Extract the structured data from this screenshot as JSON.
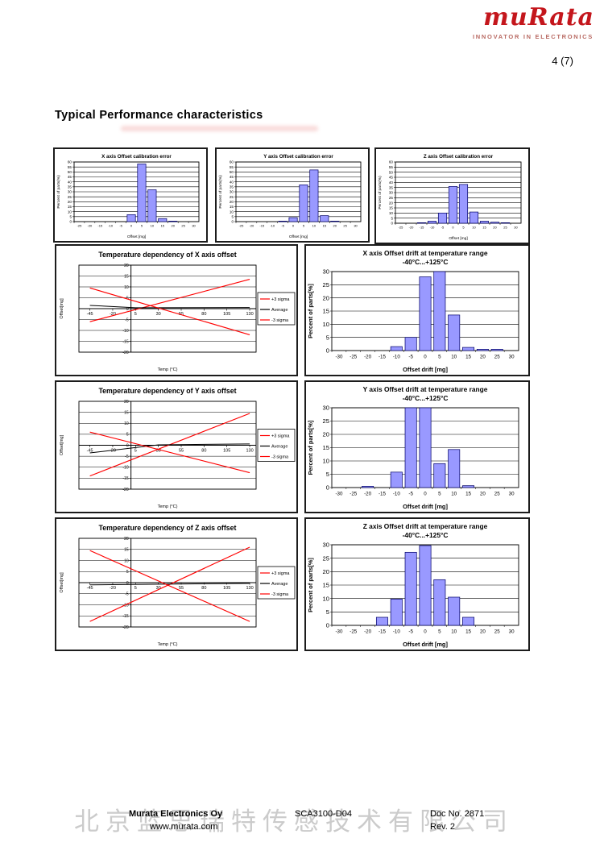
{
  "header": {
    "logo": "muRata",
    "tagline": "INNOVATOR IN ELECTRONICS",
    "page_number": "4 (7)"
  },
  "page_title": "Typical Performance characteristics",
  "footer": {
    "company": "Murata Electronics Oy",
    "website": "www.murata.com",
    "document": "SCA3100-D04",
    "doc_no": "Doc No. 2871",
    "revision": "Rev. 2",
    "watermark": "北京蓝思瑞特传感技术有限公司"
  },
  "colors": {
    "bar_fill": "#9999FF",
    "bar_stroke": "#000066",
    "sigma_line": "#FF0000",
    "average_line": "#000000",
    "logo_red": "#C4161C",
    "watermark_gray": "#CBCBCB"
  },
  "chart_data": [
    {
      "variant": "small-hist",
      "type": "bar",
      "title": [
        "X axis Offset calibration error"
      ],
      "xlabel": "Offset [mg]",
      "ylabel": "Percent of parts(%)",
      "ymax": 60,
      "ystep": 5,
      "ylim": [
        0,
        60
      ],
      "categories": [
        -25,
        -20,
        -15,
        -10,
        -5,
        0,
        5,
        10,
        15,
        20,
        25,
        30
      ],
      "values": [
        0,
        0,
        0,
        0,
        0,
        7,
        58,
        32,
        3,
        0.5,
        0,
        0
      ]
    },
    {
      "variant": "small-hist",
      "type": "bar",
      "title": [
        "Y axis Offset calibration error"
      ],
      "xlabel": "Offset [mg]",
      "ylabel": "Percent of parts(%)",
      "ymax": 60,
      "ystep": 5,
      "ylim": [
        0,
        60
      ],
      "categories": [
        -25,
        -20,
        -15,
        -10,
        -5,
        0,
        5,
        10,
        15,
        20,
        25,
        30
      ],
      "values": [
        0,
        0,
        0,
        0,
        0.5,
        4,
        37,
        52,
        6,
        0.5,
        0,
        0
      ]
    },
    {
      "variant": "small-hist",
      "type": "bar",
      "title": [
        "Z axis Offset calibration error"
      ],
      "xlabel": "Offset [mg]",
      "ylabel": "Percent of parts(%)",
      "ymax": 60,
      "ystep": 5,
      "ylim": [
        0,
        60
      ],
      "categories": [
        -25,
        -20,
        -15,
        -10,
        -5,
        0,
        5,
        10,
        15,
        20,
        25,
        30
      ],
      "values": [
        0,
        0,
        0.5,
        2,
        10,
        36,
        38,
        11,
        2,
        1,
        0.5,
        0
      ]
    },
    {
      "variant": "temp-line",
      "type": "line",
      "title": [
        "Temperature dependency of X axis offset"
      ],
      "xlabel": "Temp (°C)",
      "ylabel": "Offset[mg]",
      "xmin": -57,
      "xmax": 137,
      "ymin": -20,
      "ymax": 20,
      "ystep": 5,
      "xticks": [
        -45,
        -20,
        5,
        30,
        55,
        80,
        105,
        130
      ],
      "legend_position": "right",
      "series": [
        {
          "name": "+3 sigma",
          "color": "#FF0000",
          "points": [
            [
              -45,
              -6
            ],
            [
              130,
              13.5
            ]
          ]
        },
        {
          "name": "Average",
          "color": "#000000",
          "points": [
            [
              -45,
              1.5
            ],
            [
              5,
              0.4
            ],
            [
              130,
              0.5
            ]
          ]
        },
        {
          "name": "-3 sigma",
          "color": "#FF0000",
          "points": [
            [
              -45,
              9.5
            ],
            [
              130,
              -12
            ]
          ]
        }
      ]
    },
    {
      "variant": "drift-hist",
      "type": "bar",
      "title": [
        "X axis Offset drift at temperature range",
        "-40°C...+125°C"
      ],
      "xlabel": "Offset drift [mg]",
      "ylabel": "Percent of parts[%]",
      "ymax": 30,
      "ystep": 5,
      "ylim": [
        0,
        30
      ],
      "categories": [
        -30,
        -25,
        -20,
        -15,
        -10,
        -5,
        0,
        5,
        10,
        15,
        20,
        25,
        30
      ],
      "values": [
        0,
        0,
        0,
        0,
        1.5,
        5,
        28,
        30.5,
        13.5,
        1.2,
        0.5,
        0.5,
        0
      ]
    },
    {
      "variant": "temp-line",
      "type": "line",
      "title": [
        "Temperature dependency of Y axis offset"
      ],
      "xlabel": "Temp (°C)",
      "ylabel": "Offset[mg]",
      "xmin": -57,
      "xmax": 137,
      "ymin": -20,
      "ymax": 20,
      "ystep": 5,
      "xticks": [
        -45,
        -20,
        5,
        30,
        55,
        80,
        105,
        130
      ],
      "legend_position": "right",
      "series": [
        {
          "name": "+3 sigma",
          "color": "#FF0000",
          "points": [
            [
              -45,
              -14
            ],
            [
              130,
              14.5
            ]
          ]
        },
        {
          "name": "Average",
          "color": "#000000",
          "points": [
            [
              -45,
              -3.5
            ],
            [
              30,
              0.2
            ],
            [
              130,
              0.6
            ]
          ]
        },
        {
          "name": "-3 sigma",
          "color": "#FF0000",
          "points": [
            [
              -45,
              6
            ],
            [
              130,
              -12.5
            ]
          ]
        }
      ]
    },
    {
      "variant": "drift-hist",
      "type": "bar",
      "title": [
        "Y axis Offset drift at temperature range",
        "-40°C...+125°C"
      ],
      "xlabel": "Offset drift [mg]",
      "ylabel": "Percent of parts[%]",
      "ymax": 30,
      "ystep": 5,
      "ylim": [
        0,
        30
      ],
      "categories": [
        -30,
        -25,
        -20,
        -15,
        -10,
        -5,
        0,
        5,
        10,
        15,
        20,
        25,
        30
      ],
      "values": [
        0,
        0,
        0.5,
        0,
        5.8,
        31,
        31,
        9,
        14.3,
        0.7,
        0,
        0,
        0
      ]
    },
    {
      "variant": "temp-line",
      "type": "line",
      "title": [
        "Temperature dependency of Z axis offset"
      ],
      "xlabel": "Temp (°C)",
      "ylabel": "Offset[mg]",
      "xmin": -57,
      "xmax": 137,
      "ymin": -20,
      "ymax": 20,
      "ystep": 5,
      "xticks": [
        -45,
        -20,
        5,
        30,
        55,
        80,
        105,
        130
      ],
      "legend_position": "right",
      "series": [
        {
          "name": "+3 sigma",
          "color": "#FF0000",
          "points": [
            [
              -45,
              -17.5
            ],
            [
              130,
              16
            ]
          ]
        },
        {
          "name": "Average",
          "color": "#000000",
          "points": [
            [
              -45,
              -1
            ],
            [
              130,
              -0.3
            ]
          ]
        },
        {
          "name": "-3 sigma",
          "color": "#FF0000",
          "points": [
            [
              -45,
              14.5
            ],
            [
              130,
              -17.5
            ]
          ]
        }
      ]
    },
    {
      "variant": "drift-hist",
      "type": "bar",
      "title": [
        "Z axis Offset drift at temperature range",
        "-40°C...+125°C"
      ],
      "xlabel": "Offset drift [mg]",
      "ylabel": "Percent of parts[%]",
      "ymax": 30,
      "ystep": 5,
      "ylim": [
        0,
        30
      ],
      "categories": [
        -30,
        -25,
        -20,
        -15,
        -10,
        -5,
        0,
        5,
        10,
        15,
        20,
        25,
        30
      ],
      "values": [
        0,
        0,
        0,
        3,
        9.8,
        27.2,
        29.7,
        17,
        10.5,
        3,
        0,
        0,
        0
      ]
    }
  ]
}
